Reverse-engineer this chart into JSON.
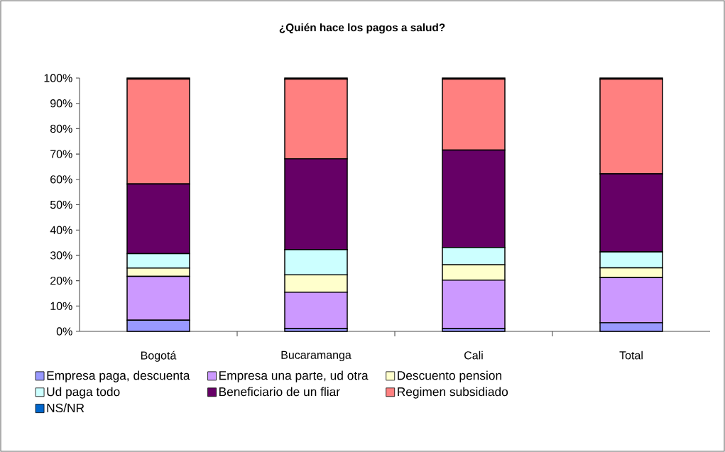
{
  "chart_data": {
    "type": "bar",
    "stacked": true,
    "title": "¿Quién hace los pagos a salud?",
    "categories": [
      "Bogotá",
      "Bucaramanga",
      "Cali",
      "Total"
    ],
    "ylim": [
      0,
      100
    ],
    "yticks": [
      {
        "value": 0,
        "label": "0%"
      },
      {
        "value": 10,
        "label": "10%"
      },
      {
        "value": 20,
        "label": "20%"
      },
      {
        "value": 30,
        "label": "30%"
      },
      {
        "value": 40,
        "label": "40%"
      },
      {
        "value": 50,
        "label": "50%"
      },
      {
        "value": 60,
        "label": "60%"
      },
      {
        "value": 70,
        "label": "70%"
      },
      {
        "value": 80,
        "label": "80%"
      },
      {
        "value": 90,
        "label": "90%"
      },
      {
        "value": 100,
        "label": "100%"
      }
    ],
    "grid": false,
    "legend": "bottom",
    "series": [
      {
        "name": "Empresa paga, descuenta",
        "color": "#9999ff",
        "values": [
          4.4,
          1.1,
          1.1,
          3.4
        ]
      },
      {
        "name": "Empresa una parte, ud otra",
        "color": "#cc99ff",
        "values": [
          17.3,
          14.4,
          19.1,
          17.8
        ]
      },
      {
        "name": "Descuento pension",
        "color": "#ffffcc",
        "values": [
          3.3,
          6.8,
          6.1,
          3.9
        ]
      },
      {
        "name": "Ud paga todo",
        "color": "#ccffff",
        "values": [
          5.7,
          10.0,
          6.8,
          6.3
        ]
      },
      {
        "name": "Beneficiario de un fliar",
        "color": "#660066",
        "values": [
          27.5,
          35.8,
          38.5,
          30.8
        ]
      },
      {
        "name": "Regimen subsidiado",
        "color": "#ff8080",
        "values": [
          41.4,
          31.5,
          28.0,
          37.4
        ]
      },
      {
        "name": "NS/NR",
        "color": "#0066cc",
        "values": [
          0.4,
          0.4,
          0.4,
          0.4
        ]
      }
    ]
  }
}
